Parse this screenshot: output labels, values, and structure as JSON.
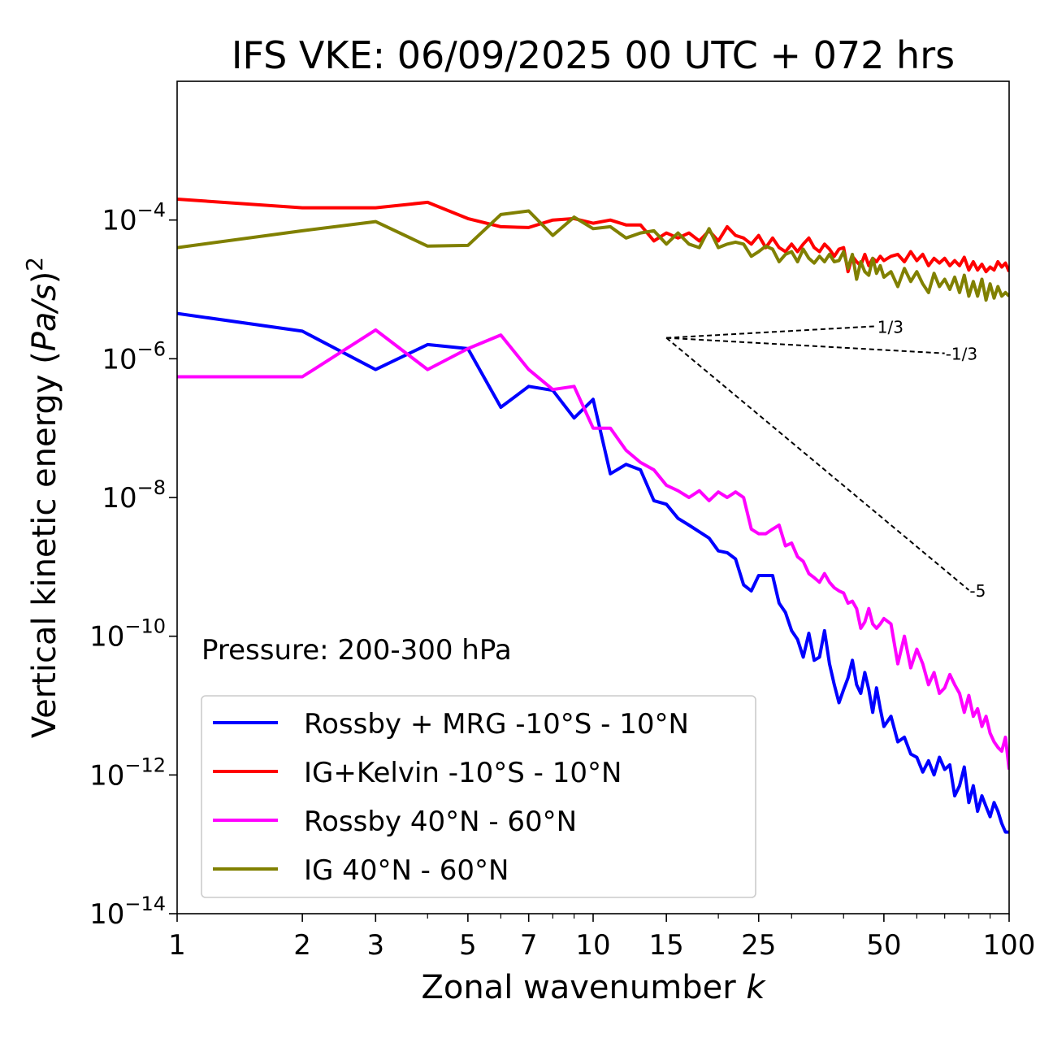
{
  "chart_data": {
    "type": "line",
    "title": "IFS VKE: 06/09/2025 00 UTC + 072 hrs",
    "xlabel": "Zonal wavenumber k",
    "xlabel_main": "Zonal wavenumber ",
    "xlabel_var": "k",
    "ylabel": "Vertical kinetic energy (Pa/s)^2",
    "ylabel_main": "Vertical kinetic energy (",
    "ylabel_var": "Pa/s",
    "ylabel_close": ")",
    "ylabel_exp": "2",
    "xscale": "log",
    "yscale": "log",
    "xlim": [
      1,
      100
    ],
    "ylim": [
      1e-14,
      0.01
    ],
    "x_ticks": [
      1,
      2,
      3,
      5,
      7,
      10,
      15,
      25,
      50,
      100
    ],
    "x_tick_labels": [
      "1",
      "2",
      "3",
      "5",
      "7",
      "10",
      "15",
      "25",
      "50",
      "100"
    ],
    "y_ticks": [
      {
        "value": 0.0001,
        "exp": "−4"
      },
      {
        "value": 1e-06,
        "exp": "−6"
      },
      {
        "value": 1e-08,
        "exp": "−8"
      },
      {
        "value": 1e-10,
        "exp": "−10"
      },
      {
        "value": 1e-12,
        "exp": "−12"
      },
      {
        "value": 1e-14,
        "exp": "−14"
      }
    ],
    "y_tick_base": "10",
    "annotation": "Pressure: 200-300 hPa",
    "legend_position": "lower-left",
    "series": [
      {
        "name": "Rossby + MRG -10°S - 10°N",
        "color": "#0000ff",
        "x": [
          1,
          2,
          3,
          4,
          5,
          6,
          7,
          8,
          9,
          10,
          11,
          12,
          13,
          14,
          15,
          16,
          17,
          18,
          19,
          20,
          21,
          22,
          23,
          24,
          25,
          26,
          27,
          28,
          29,
          30,
          31,
          32,
          33,
          34,
          35,
          36,
          37,
          38,
          39,
          40,
          41,
          42,
          43,
          44,
          45,
          46,
          47,
          48,
          49,
          50,
          52,
          54,
          56,
          58,
          60,
          62,
          64,
          66,
          68,
          70,
          72,
          74,
          76,
          78,
          80,
          82,
          84,
          86,
          88,
          90,
          92,
          94,
          96,
          98,
          100
        ],
        "values": [
          4.5e-06,
          2.5e-06,
          7e-07,
          1.6e-06,
          1.4e-06,
          2e-07,
          4e-07,
          3.5e-07,
          1.4e-07,
          2.6e-07,
          2.2e-08,
          3e-08,
          2.5e-08,
          9e-09,
          8e-09,
          5e-09,
          4e-09,
          3.2e-09,
          2.6e-09,
          1.7e-09,
          1.6e-09,
          1.3e-09,
          5.5e-10,
          4.5e-10,
          7.5e-10,
          7.5e-10,
          7.5e-10,
          3e-10,
          2.2e-10,
          1.2e-10,
          9e-11,
          5e-11,
          1.1e-10,
          4.5e-11,
          5e-11,
          1.2e-10,
          4e-11,
          2e-11,
          1.1e-11,
          1.7e-11,
          2.5e-11,
          4.5e-11,
          2e-11,
          1.5e-11,
          3e-11,
          1.7e-11,
          8e-12,
          1.8e-11,
          9e-12,
          5e-12,
          7e-12,
          3e-12,
          3.5e-12,
          2e-12,
          1.8e-12,
          1.1e-12,
          1.6e-12,
          1e-12,
          1.8e-12,
          1.2e-12,
          1.4e-12,
          5e-13,
          7e-13,
          1.3e-12,
          4e-13,
          7e-13,
          3e-13,
          5e-13,
          3.5e-13,
          2.5e-13,
          4e-13,
          3e-13,
          2e-13,
          1.5e-13,
          1.5e-13
        ]
      },
      {
        "name": "IG+Kelvin -10°S - 10°N",
        "color": "#ff0000",
        "x": [
          1,
          2,
          3,
          4,
          5,
          6,
          7,
          8,
          9,
          10,
          11,
          12,
          13,
          14,
          15,
          16,
          17,
          18,
          19,
          20,
          21,
          22,
          23,
          24,
          25,
          26,
          27,
          28,
          29,
          30,
          31,
          32,
          33,
          34,
          35,
          36,
          37,
          38,
          39,
          40,
          41,
          42,
          43,
          44,
          45,
          46,
          47,
          48,
          49,
          50,
          52,
          54,
          56,
          58,
          60,
          62,
          64,
          66,
          68,
          70,
          72,
          74,
          76,
          78,
          80,
          82,
          84,
          86,
          88,
          90,
          92,
          94,
          96,
          98,
          100
        ],
        "values": [
          0.0002,
          0.00015,
          0.00015,
          0.00018,
          0.000105,
          8e-05,
          7.8e-05,
          0.0001,
          0.000105,
          9e-05,
          0.0001,
          8.5e-05,
          8.5e-05,
          5e-05,
          6.5e-05,
          5.5e-05,
          6.5e-05,
          5e-05,
          7e-05,
          5e-05,
          8e-05,
          6e-05,
          5.5e-05,
          4.5e-05,
          6e-05,
          4e-05,
          5.5e-05,
          4e-05,
          3.5e-05,
          4.5e-05,
          3.5e-05,
          4.5e-05,
          5.5e-05,
          4e-05,
          3.5e-05,
          4.5e-05,
          3.8e-05,
          3e-05,
          3.8e-05,
          4e-05,
          1.8e-05,
          3e-05,
          2.5e-05,
          2.2e-05,
          3.2e-05,
          2.2e-05,
          2.8e-05,
          2.5e-05,
          3e-05,
          2.6e-05,
          3e-05,
          3.2e-05,
          2.5e-05,
          3.5e-05,
          2.6e-05,
          3.2e-05,
          2.2e-05,
          2.8e-05,
          2.4e-05,
          2.8e-05,
          2.2e-05,
          2.6e-05,
          2.2e-05,
          2.9e-05,
          1.9e-05,
          2.5e-05,
          1.9e-05,
          2.3e-05,
          1.8e-05,
          2.1e-05,
          1.9e-05,
          2.5e-05,
          2.1e-05,
          2.4e-05,
          1.8e-05
        ]
      },
      {
        "name": "Rossby 40°N - 60°N",
        "color": "#ff00ff",
        "x": [
          1,
          2,
          3,
          4,
          5,
          6,
          7,
          8,
          9,
          10,
          11,
          12,
          13,
          14,
          15,
          16,
          17,
          18,
          19,
          20,
          21,
          22,
          23,
          24,
          25,
          26,
          27,
          28,
          29,
          30,
          31,
          32,
          33,
          34,
          35,
          36,
          37,
          38,
          39,
          40,
          41,
          42,
          43,
          44,
          45,
          46,
          47,
          48,
          49,
          50,
          52,
          54,
          56,
          58,
          60,
          62,
          64,
          66,
          68,
          70,
          72,
          74,
          76,
          78,
          80,
          82,
          84,
          86,
          88,
          90,
          92,
          94,
          96,
          98,
          100
        ],
        "values": [
          5.5e-07,
          5.5e-07,
          2.6e-06,
          7e-07,
          1.4e-06,
          2.2e-06,
          7e-07,
          3.6e-07,
          4e-07,
          1e-07,
          1e-07,
          4.8e-08,
          3.2e-08,
          2.5e-08,
          1.5e-08,
          1.25e-08,
          1e-08,
          1.25e-08,
          9e-09,
          1.2e-08,
          1e-08,
          1.2e-08,
          1e-08,
          3.5e-09,
          3e-09,
          3e-09,
          3.5e-09,
          4e-09,
          2e-09,
          2.2e-09,
          1.4e-09,
          1.2e-09,
          8e-10,
          7e-10,
          6e-10,
          8e-10,
          6e-10,
          5e-10,
          4.5e-10,
          4.2e-10,
          3e-10,
          3.2e-10,
          2.5e-10,
          1.3e-10,
          1.6e-10,
          2.5e-10,
          1.5e-10,
          1.3e-10,
          1.5e-10,
          1.8e-10,
          1.5e-10,
          4e-11,
          1e-10,
          3.5e-11,
          6.5e-11,
          4e-11,
          2e-11,
          3e-11,
          1.5e-11,
          1.8e-11,
          2.8e-11,
          2e-11,
          1.5e-11,
          8e-12,
          1.4e-11,
          7e-12,
          9e-12,
          5e-12,
          7e-12,
          4e-12,
          3e-12,
          2.5e-12,
          2.2e-12,
          3.5e-12,
          1.2e-12
        ]
      },
      {
        "name": "IG 40°N - 60°N",
        "color": "#808000",
        "x": [
          1,
          2,
          3,
          4,
          5,
          6,
          7,
          8,
          9,
          10,
          11,
          12,
          13,
          14,
          15,
          16,
          17,
          18,
          19,
          20,
          21,
          22,
          23,
          24,
          25,
          26,
          27,
          28,
          29,
          30,
          31,
          32,
          33,
          34,
          35,
          36,
          37,
          38,
          39,
          40,
          41,
          42,
          43,
          44,
          45,
          46,
          47,
          48,
          49,
          50,
          52,
          54,
          56,
          58,
          60,
          62,
          64,
          66,
          68,
          70,
          72,
          74,
          76,
          78,
          80,
          82,
          84,
          86,
          88,
          90,
          92,
          94,
          96,
          98,
          100
        ],
        "values": [
          4e-05,
          7e-05,
          9.5e-05,
          4.2e-05,
          4.3e-05,
          0.00012,
          0.000135,
          6e-05,
          0.00011,
          7.5e-05,
          8e-05,
          5.5e-05,
          6.5e-05,
          7e-05,
          4.5e-05,
          6.5e-05,
          4.5e-05,
          4e-05,
          7.5e-05,
          4e-05,
          4.5e-05,
          4.8e-05,
          4.5e-05,
          3e-05,
          3.5e-05,
          4.2e-05,
          3.8e-05,
          2.5e-05,
          3.2e-05,
          3.5e-05,
          2.5e-05,
          3.8e-05,
          2.8e-05,
          2.4e-05,
          3e-05,
          2.5e-05,
          3.2e-05,
          2.5e-05,
          2.6e-05,
          3.5e-05,
          2e-05,
          3.2e-05,
          1.4e-05,
          2.5e-05,
          1.8e-05,
          1.6e-05,
          2.8e-05,
          1.7e-05,
          2.2e-05,
          1.5e-05,
          1.8e-05,
          1.1e-05,
          2e-05,
          1.3e-05,
          1.8e-05,
          1.2e-05,
          9e-06,
          1.7e-05,
          1.1e-05,
          1.4e-05,
          1e-05,
          1.5e-05,
          9e-06,
          1.6e-05,
          8e-06,
          1.3e-05,
          8e-06,
          1.4e-05,
          7e-06,
          1.2e-05,
          7.5e-06,
          1.1e-05,
          8e-06,
          9e-06,
          8e-06
        ]
      }
    ],
    "slope_lines": [
      {
        "label": "1/3",
        "slope": 0.3333,
        "x0": 15,
        "y0": 2e-06,
        "x1": 48
      },
      {
        "label": "-1/3",
        "slope": -0.3333,
        "x0": 15,
        "y0": 2e-06,
        "x1": 70
      },
      {
        "label": "-5",
        "slope": -5,
        "x0": 15,
        "y0": 2e-06,
        "x1": 80
      }
    ]
  }
}
